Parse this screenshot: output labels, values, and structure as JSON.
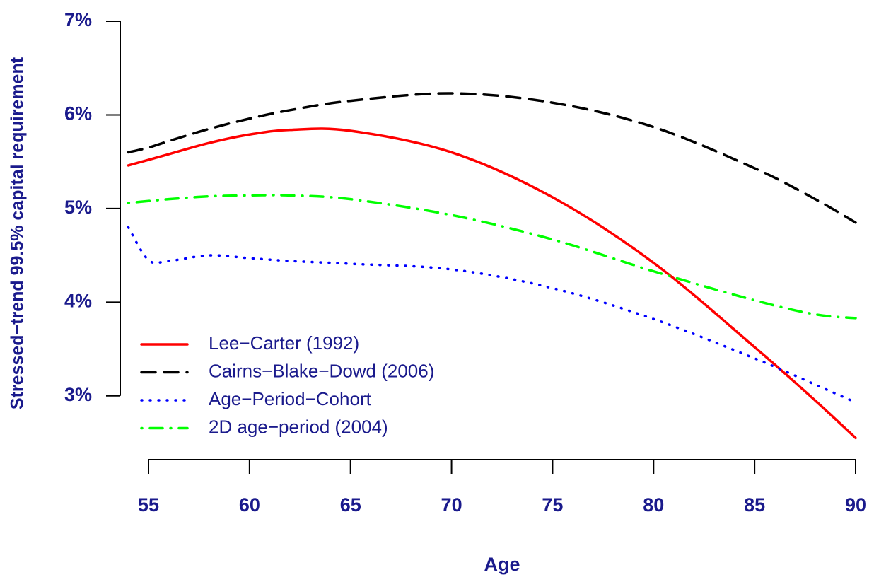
{
  "chart_data": {
    "type": "line",
    "x_label": "Age",
    "y_label": "Stressed−trend 99.5% capital requirement",
    "x": [
      54,
      55,
      56,
      58,
      60,
      62,
      65,
      70,
      75,
      80,
      85,
      88,
      90
    ],
    "series": [
      {
        "name": "Lee−Carter (1992)",
        "color": "#ff0000",
        "dash": "solid",
        "values": [
          5.46,
          5.52,
          5.58,
          5.7,
          5.79,
          5.84,
          5.83,
          5.6,
          5.12,
          4.42,
          3.52,
          2.95,
          2.55
        ]
      },
      {
        "name": "Cairns−Blake−Dowd (2006)",
        "color": "#000000",
        "dash": "dashed",
        "values": [
          5.6,
          5.65,
          5.72,
          5.85,
          5.96,
          6.05,
          6.15,
          6.23,
          6.13,
          5.87,
          5.43,
          5.1,
          4.85
        ]
      },
      {
        "name": "Age−Period−Cohort",
        "color": "#0000ff",
        "dash": "dotted",
        "values": [
          4.8,
          4.45,
          4.44,
          4.5,
          4.47,
          4.44,
          4.41,
          4.35,
          4.15,
          3.82,
          3.4,
          3.12,
          2.93
        ]
      },
      {
        "name": "2D age−period (2004)",
        "color": "#00ff00",
        "dash": "dotdash",
        "values": [
          5.06,
          5.08,
          5.1,
          5.13,
          5.14,
          5.14,
          5.1,
          4.93,
          4.67,
          4.33,
          4.02,
          3.87,
          3.83
        ]
      }
    ],
    "xlim": [
      53.6,
      90
    ],
    "xticks": [
      55,
      60,
      65,
      70,
      75,
      80,
      85,
      90
    ],
    "ylim": [
      2.5,
      7
    ],
    "yticks": [
      {
        "value": 3,
        "label": "3%"
      },
      {
        "value": 4,
        "label": "4%"
      },
      {
        "value": 5,
        "label": "5%"
      },
      {
        "value": 6,
        "label": "6%"
      },
      {
        "value": 7,
        "label": "7%"
      }
    ],
    "legend": "bottom-left"
  }
}
